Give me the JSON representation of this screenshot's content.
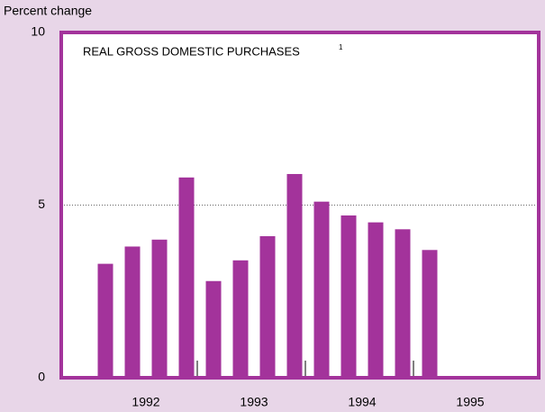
{
  "chart_data": {
    "type": "bar",
    "y_label": "Percent change",
    "annotation": "REAL GROSS DOMESTIC PURCHASES",
    "annotation_note": "1",
    "categories": [
      "1992",
      null,
      null,
      null,
      "1993",
      null,
      null,
      null,
      "1994",
      null,
      null,
      null,
      "1995",
      null,
      null,
      null
    ],
    "values": [
      3.3,
      3.8,
      4.0,
      5.8,
      2.8,
      3.4,
      4.1,
      5.9,
      5.1,
      4.7,
      4.5,
      4.3,
      3.7,
      null,
      null,
      null
    ],
    "color": "#a3339b",
    "ylim": [
      0,
      10
    ],
    "yticks": [
      0,
      5,
      10
    ],
    "grid": true
  }
}
